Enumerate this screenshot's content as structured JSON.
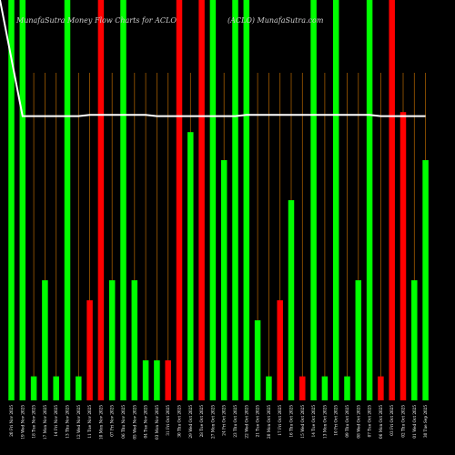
{
  "chart_data": {
    "type": "bar",
    "title": "MunafaSutra Money Flow Charts for ACLO",
    "watermark": "(ACLO) MunafaSutra.com",
    "colors": {
      "background": "#000000",
      "up": "#00ff00",
      "down": "#ff0000",
      "line": "#ffffff",
      "grid": "#a05a00",
      "text": "#ffffff",
      "title": "#cccccc"
    },
    "ylim": [
      0,
      100
    ],
    "categories": [
      "20 Fri Nov 2025",
      "19 Wed Nov 2025",
      "18 Tue Nov 2025",
      "17 Mon Nov 2025",
      "14 Fri Nov 2025",
      "13 Thu Nov 2025",
      "12 Wed Nov 2025",
      "11 Tue Nov 2025",
      "10 Mon Nov 2025",
      "07 Fri Nov 2025",
      "06 Thu Nov 2025",
      "05 Wed Nov 2025",
      "04 Tue Nov 2025",
      "03 Mon Nov 2025",
      "31 Fri Oct 2025",
      "30 Thu Oct 2025",
      "29 Wed Oct 2025",
      "28 Tue Oct 2025",
      "27 Mon Oct 2025",
      "24 Fri Oct 2025",
      "23 Thu Oct 2025",
      "22 Wed Oct 2025",
      "21 Tue Oct 2025",
      "20 Mon Oct 2025",
      "17 Fri Oct 2025",
      "16 Thu Oct 2025",
      "15 Wed Oct 2025",
      "14 Tue Oct 2025",
      "13 Mon Oct 2025",
      "10 Fri Oct 2025",
      "09 Thu Oct 2025",
      "08 Wed Oct 2025",
      "07 Tue Oct 2025",
      "06 Mon Oct 2025",
      "03 Fri Oct 2025",
      "02 Thu Oct 2025",
      "01 Wed Oct 2025",
      "30 Tue Sep 2025"
    ],
    "values": [
      100,
      100,
      6,
      30,
      6,
      100,
      6,
      25,
      100,
      30,
      100,
      30,
      10,
      10,
      10,
      100,
      67,
      100,
      100,
      60,
      100,
      100,
      20,
      6,
      25,
      50,
      6,
      100,
      6,
      100,
      6,
      30,
      100,
      6,
      100,
      72,
      30,
      60
    ],
    "directions": [
      "up",
      "up",
      "up",
      "up",
      "up",
      "up",
      "up",
      "down",
      "down",
      "up",
      "up",
      "up",
      "up",
      "up",
      "down",
      "down",
      "up",
      "down",
      "up",
      "up",
      "up",
      "up",
      "up",
      "up",
      "down",
      "up",
      "down",
      "up",
      "up",
      "up",
      "up",
      "up",
      "up",
      "down",
      "down",
      "down",
      "up",
      "up"
    ],
    "line_values": [
      100,
      71,
      71,
      71,
      71,
      71,
      71,
      71.3,
      71.3,
      71.3,
      71.3,
      71.3,
      71.3,
      71,
      71,
      71,
      71,
      71,
      71,
      71,
      71,
      71.3,
      71.3,
      71.3,
      71.3,
      71.3,
      71.3,
      71.3,
      71.3,
      71.3,
      71.3,
      71.3,
      71.3,
      71,
      71,
      71,
      71,
      71
    ]
  }
}
